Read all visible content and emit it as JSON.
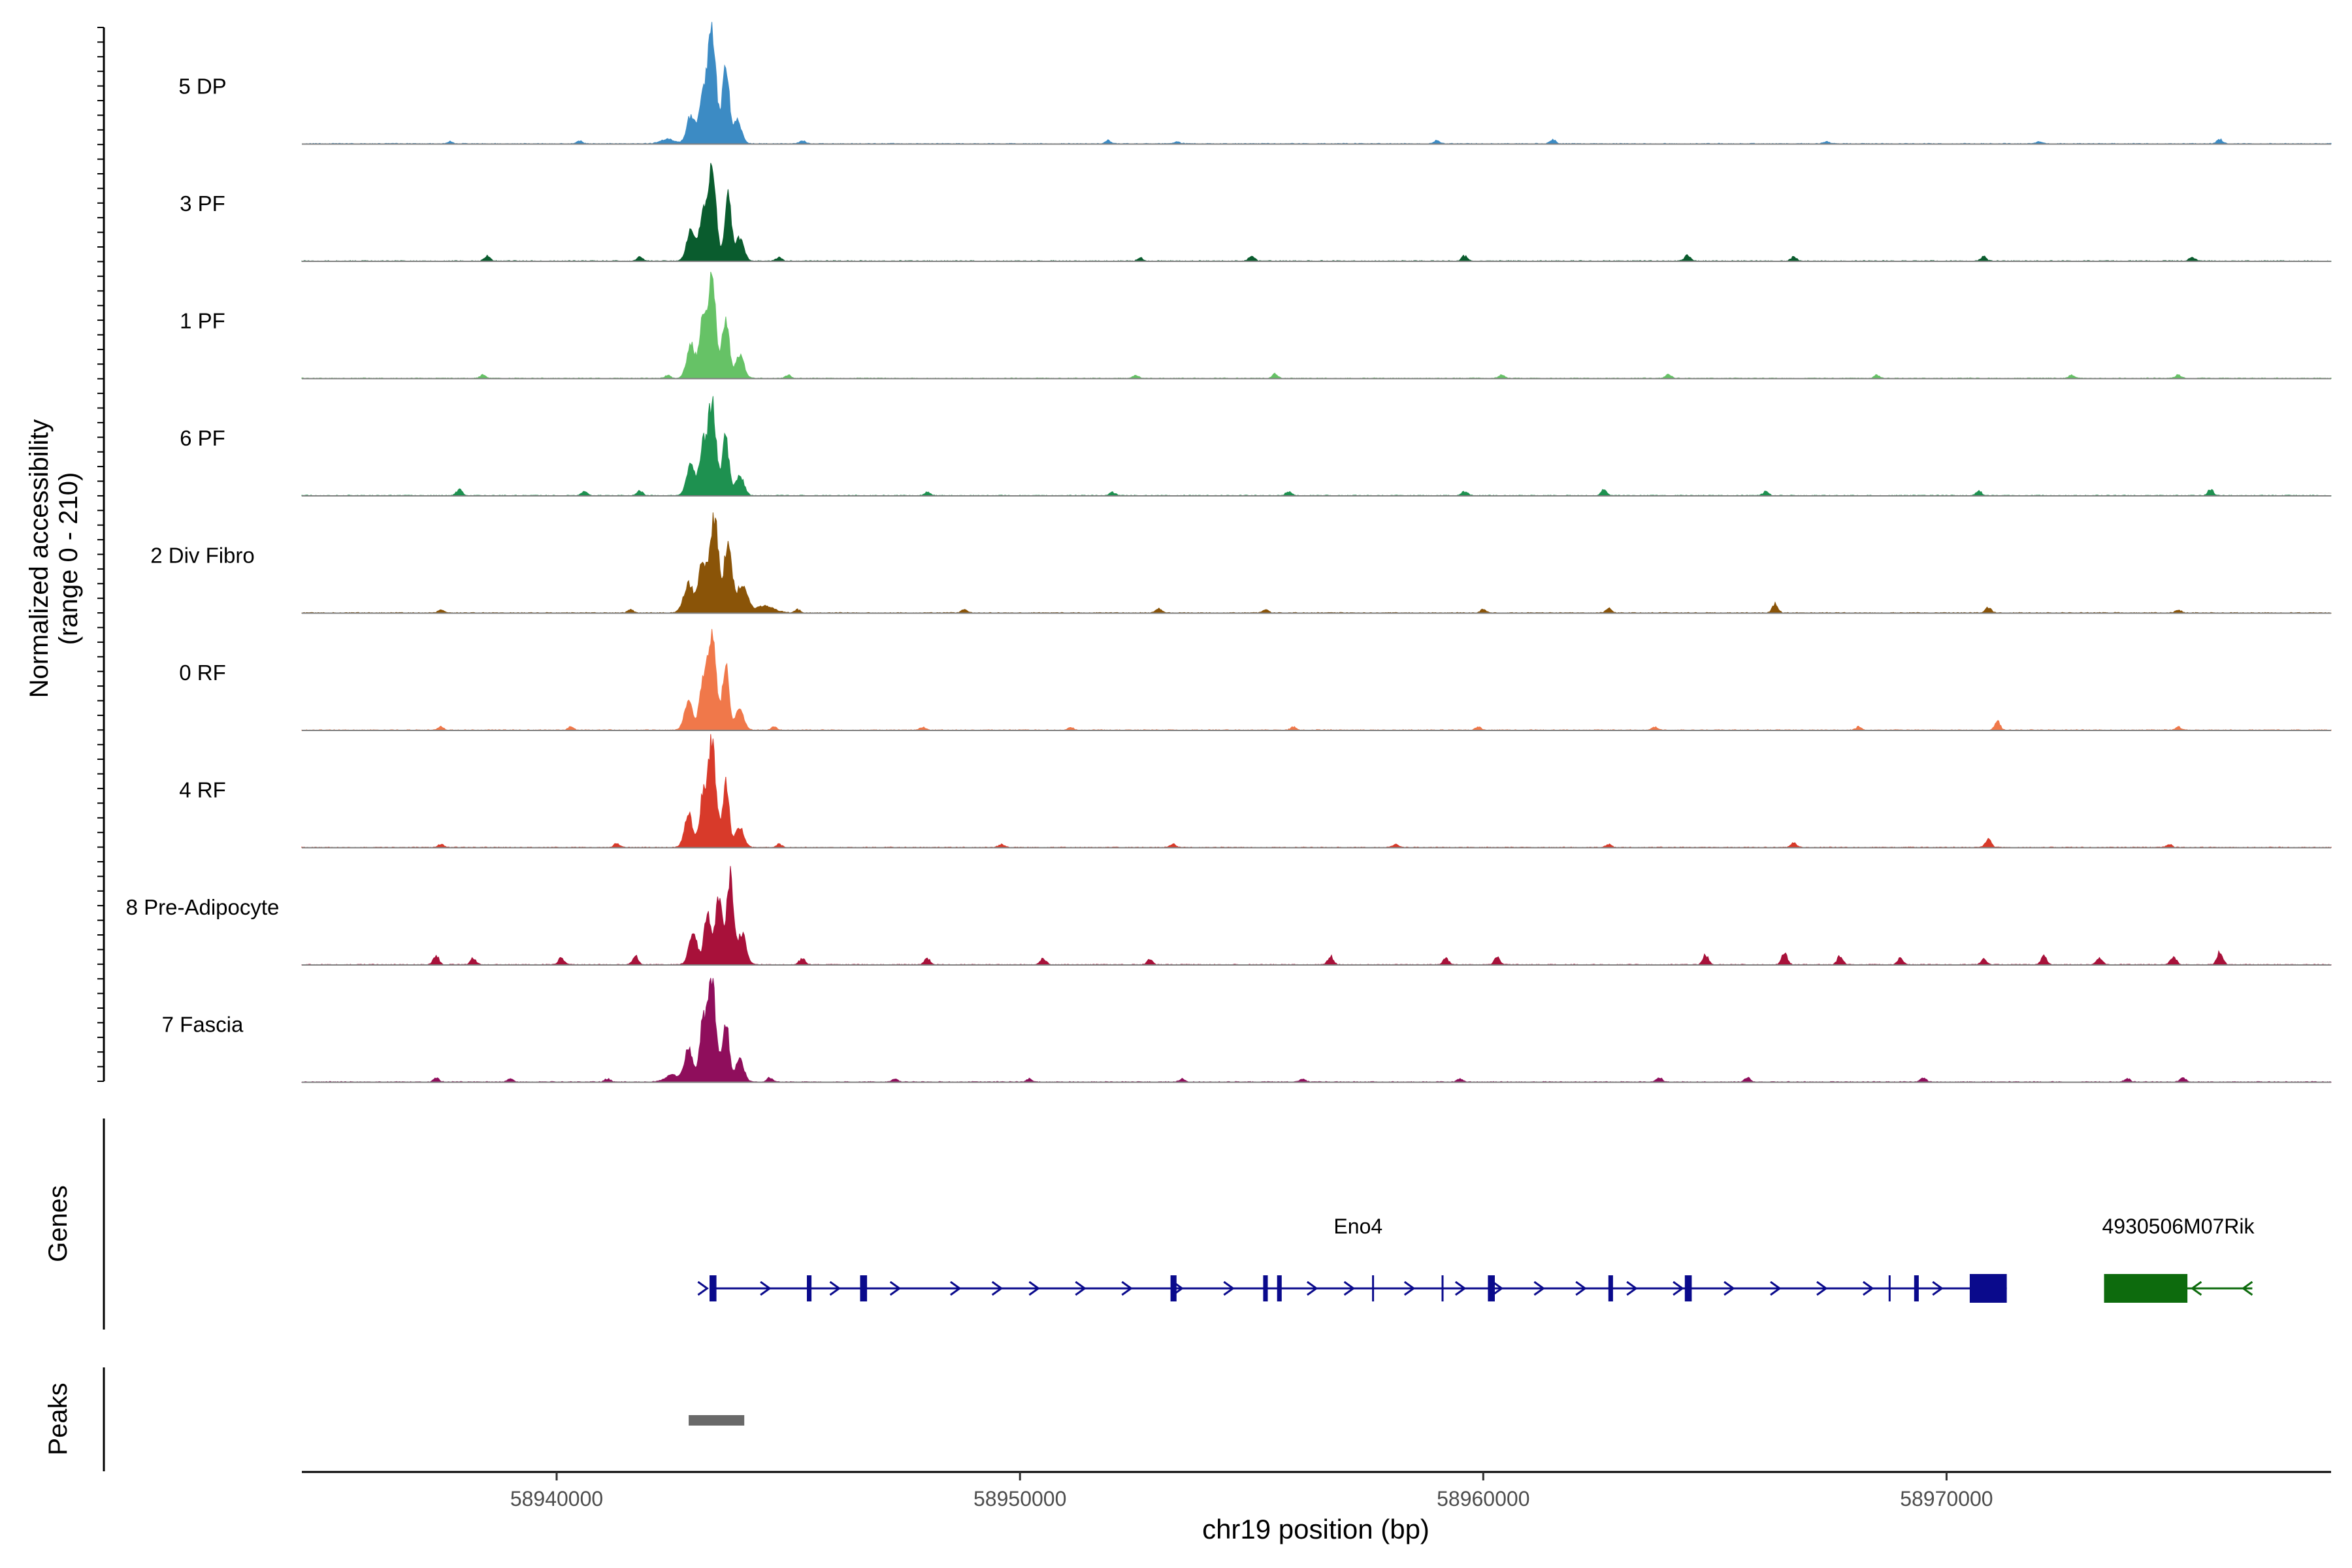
{
  "chart_data": {
    "type": "area",
    "title": "",
    "ylabel_line1": "Normalized accessibility",
    "ylabel_line2": "(range 0 - 210)",
    "y_range": [
      0,
      210
    ],
    "xlabel": "chr19 position (bp)",
    "x_range": [
      58934500,
      58978300
    ],
    "x_ticks": [
      {
        "value": 58940000,
        "label": "58940000"
      },
      {
        "value": 58950000,
        "label": "58950000"
      },
      {
        "value": 58960000,
        "label": "58960000"
      },
      {
        "value": 58970000,
        "label": "58970000"
      }
    ],
    "series": [
      {
        "name": "5 DP",
        "color": "#3C8BC4",
        "peaks": [
          [
            58942900,
            25,
            90
          ],
          [
            58943150,
            40,
            70
          ],
          [
            58943350,
            100,
            90
          ],
          [
            58943650,
            70,
            70
          ],
          [
            58943900,
            20,
            90
          ],
          [
            58942400,
            4,
            150
          ]
        ],
        "noise": [
          [
            58937700,
            2
          ],
          [
            58940500,
            3
          ],
          [
            58945300,
            3
          ],
          [
            58951900,
            3
          ],
          [
            58953400,
            2
          ],
          [
            58959000,
            3
          ],
          [
            58961500,
            4
          ],
          [
            58967400,
            2
          ],
          [
            58972000,
            2
          ],
          [
            58975900,
            4
          ]
        ]
      },
      {
        "name": "3 PF",
        "color": "#0A5C2E",
        "peaks": [
          [
            58942900,
            28,
            90
          ],
          [
            58943150,
            40,
            70
          ],
          [
            58943350,
            80,
            90
          ],
          [
            58943700,
            55,
            70
          ],
          [
            58943950,
            20,
            90
          ]
        ],
        "noise": [
          [
            58938500,
            5
          ],
          [
            58941800,
            4
          ],
          [
            58944800,
            4
          ],
          [
            58952600,
            3
          ],
          [
            58955000,
            5
          ],
          [
            58959600,
            5
          ],
          [
            58964400,
            6
          ],
          [
            58966700,
            4
          ],
          [
            58970800,
            4
          ],
          [
            58975300,
            4
          ]
        ]
      },
      {
        "name": "1 PF",
        "color": "#66C266",
        "peaks": [
          [
            58942900,
            30,
            90
          ],
          [
            58943150,
            45,
            70
          ],
          [
            58943350,
            85,
            90
          ],
          [
            58943650,
            55,
            70
          ],
          [
            58943950,
            20,
            90
          ]
        ],
        "noise": [
          [
            58938400,
            3
          ],
          [
            58942400,
            3
          ],
          [
            58945000,
            3
          ],
          [
            58952500,
            3
          ],
          [
            58955500,
            4
          ],
          [
            58960400,
            3
          ],
          [
            58964000,
            4
          ],
          [
            58968500,
            3
          ],
          [
            58972700,
            3
          ],
          [
            58975000,
            3
          ]
        ]
      },
      {
        "name": "6 PF",
        "color": "#1E9150",
        "peaks": [
          [
            58942900,
            28,
            90
          ],
          [
            58943150,
            40,
            70
          ],
          [
            58943350,
            80,
            90
          ],
          [
            58943650,
            50,
            70
          ],
          [
            58943950,
            18,
            90
          ]
        ],
        "noise": [
          [
            58937900,
            6
          ],
          [
            58940600,
            4
          ],
          [
            58941800,
            5
          ],
          [
            58948000,
            3
          ],
          [
            58952000,
            3
          ],
          [
            58955800,
            4
          ],
          [
            58959600,
            4
          ],
          [
            58962600,
            5
          ],
          [
            58966100,
            4
          ],
          [
            58970700,
            4
          ],
          [
            58975700,
            6
          ]
        ]
      },
      {
        "name": "2 Div Fibro",
        "color": "#8A5408",
        "peaks": [
          [
            58942850,
            25,
            110
          ],
          [
            58943150,
            45,
            80
          ],
          [
            58943400,
            85,
            90
          ],
          [
            58943700,
            65,
            80
          ],
          [
            58944000,
            25,
            110
          ],
          [
            58944500,
            6,
            200
          ]
        ],
        "noise": [
          [
            58937500,
            3
          ],
          [
            58941600,
            3
          ],
          [
            58945200,
            3
          ],
          [
            58948800,
            3
          ],
          [
            58953000,
            4
          ],
          [
            58955300,
            3
          ],
          [
            58960000,
            3
          ],
          [
            58962700,
            4
          ],
          [
            58966300,
            8
          ],
          [
            58970900,
            5
          ],
          [
            58975000,
            3
          ]
        ]
      },
      {
        "name": "0 RF",
        "color": "#F0784A",
        "peaks": [
          [
            58942850,
            25,
            90
          ],
          [
            58943150,
            40,
            70
          ],
          [
            58943350,
            90,
            90
          ],
          [
            58943650,
            55,
            70
          ],
          [
            58943950,
            18,
            90
          ]
        ],
        "noise": [
          [
            58937500,
            3
          ],
          [
            58940300,
            3
          ],
          [
            58944700,
            3
          ],
          [
            58947900,
            3
          ],
          [
            58951100,
            3
          ],
          [
            58955900,
            3
          ],
          [
            58959900,
            3
          ],
          [
            58963700,
            3
          ],
          [
            58968100,
            3
          ],
          [
            58971100,
            8
          ],
          [
            58975000,
            3
          ]
        ]
      },
      {
        "name": "4 RF",
        "color": "#D83A2A",
        "peaks": [
          [
            58942850,
            28,
            90
          ],
          [
            58943150,
            40,
            70
          ],
          [
            58943350,
            92,
            90
          ],
          [
            58943650,
            55,
            70
          ],
          [
            58943950,
            18,
            90
          ]
        ],
        "noise": [
          [
            58937500,
            3
          ],
          [
            58941300,
            4
          ],
          [
            58944800,
            3
          ],
          [
            58949600,
            3
          ],
          [
            58953300,
            3
          ],
          [
            58958100,
            3
          ],
          [
            58962700,
            3
          ],
          [
            58966700,
            4
          ],
          [
            58970900,
            9
          ],
          [
            58974800,
            3
          ]
        ]
      },
      {
        "name": "8 Pre-Adipocyte",
        "color": "#A8113A",
        "peaks": [
          [
            58942950,
            28,
            90
          ],
          [
            58943250,
            42,
            70
          ],
          [
            58943500,
            55,
            90
          ],
          [
            58943750,
            78,
            70
          ],
          [
            58944000,
            28,
            90
          ]
        ],
        "noise": [
          [
            58937400,
            9
          ],
          [
            58938200,
            6
          ],
          [
            58940100,
            7
          ],
          [
            58941700,
            8
          ],
          [
            58945300,
            6
          ],
          [
            58948000,
            6
          ],
          [
            58950500,
            6
          ],
          [
            58952800,
            5
          ],
          [
            58956700,
            8
          ],
          [
            58959200,
            6
          ],
          [
            58960300,
            7
          ],
          [
            58964800,
            9
          ],
          [
            58966500,
            11
          ],
          [
            58967700,
            8
          ],
          [
            58969000,
            7
          ],
          [
            58970800,
            5
          ],
          [
            58972100,
            9
          ],
          [
            58973300,
            6
          ],
          [
            58974900,
            8
          ],
          [
            58975900,
            12
          ]
        ]
      },
      {
        "name": "7 Fascia",
        "color": "#8F0E5C",
        "peaks": [
          [
            58942850,
            28,
            90
          ],
          [
            58943150,
            48,
            70
          ],
          [
            58943350,
            88,
            90
          ],
          [
            58943650,
            55,
            70
          ],
          [
            58943950,
            20,
            90
          ],
          [
            58942500,
            6,
            150
          ]
        ],
        "noise": [
          [
            58937400,
            4
          ],
          [
            58939000,
            3
          ],
          [
            58941100,
            3
          ],
          [
            58944600,
            4
          ],
          [
            58947300,
            3
          ],
          [
            58950200,
            3
          ],
          [
            58953500,
            3
          ],
          [
            58956100,
            3
          ],
          [
            58959500,
            3
          ],
          [
            58963800,
            4
          ],
          [
            58965700,
            4
          ],
          [
            58969500,
            4
          ],
          [
            58973900,
            3
          ],
          [
            58975100,
            4
          ]
        ]
      }
    ],
    "genes_panel": {
      "label": "Genes",
      "genes": [
        {
          "name": "Eno4",
          "strand": "+",
          "color": "#0A0A8C",
          "start": 58943300,
          "end": 58971300,
          "exons": [
            [
              58943300,
              58943450
            ],
            [
              58945400,
              58945500
            ],
            [
              58946550,
              58946700
            ],
            [
              58953250,
              58953380
            ],
            [
              58955250,
              58955350
            ],
            [
              58955550,
              58955650
            ],
            [
              58957600,
              58957640
            ],
            [
              58959100,
              58959140
            ],
            [
              58960100,
              58960250
            ],
            [
              58962700,
              58962800
            ],
            [
              58964350,
              58964500
            ],
            [
              58968750,
              58968790
            ],
            [
              58969300,
              58969400
            ],
            [
              58970500,
              58971300
            ]
          ],
          "arrows": [
            58943150,
            58944500,
            58946000,
            58947300,
            58948600,
            58949500,
            58950300,
            58951300,
            58952300,
            58953400,
            58954500,
            58956300,
            58957100,
            58958400,
            58959500,
            58960300,
            58961200,
            58962100,
            58963200,
            58964200,
            58965300,
            58966300,
            58967300,
            58968300,
            58969800
          ]
        },
        {
          "name": "4930506M07Rik",
          "strand": "-",
          "color": "#0D6B0D",
          "start": 58973400,
          "end": 58976600,
          "exons": [
            [
              58973400,
              58975200
            ]
          ],
          "arrows": [
            58975400,
            58976500
          ]
        }
      ]
    },
    "peaks_panel": {
      "label": "Peaks",
      "color": "#696969",
      "regions": [
        [
          58942850,
          58944050
        ]
      ]
    }
  }
}
